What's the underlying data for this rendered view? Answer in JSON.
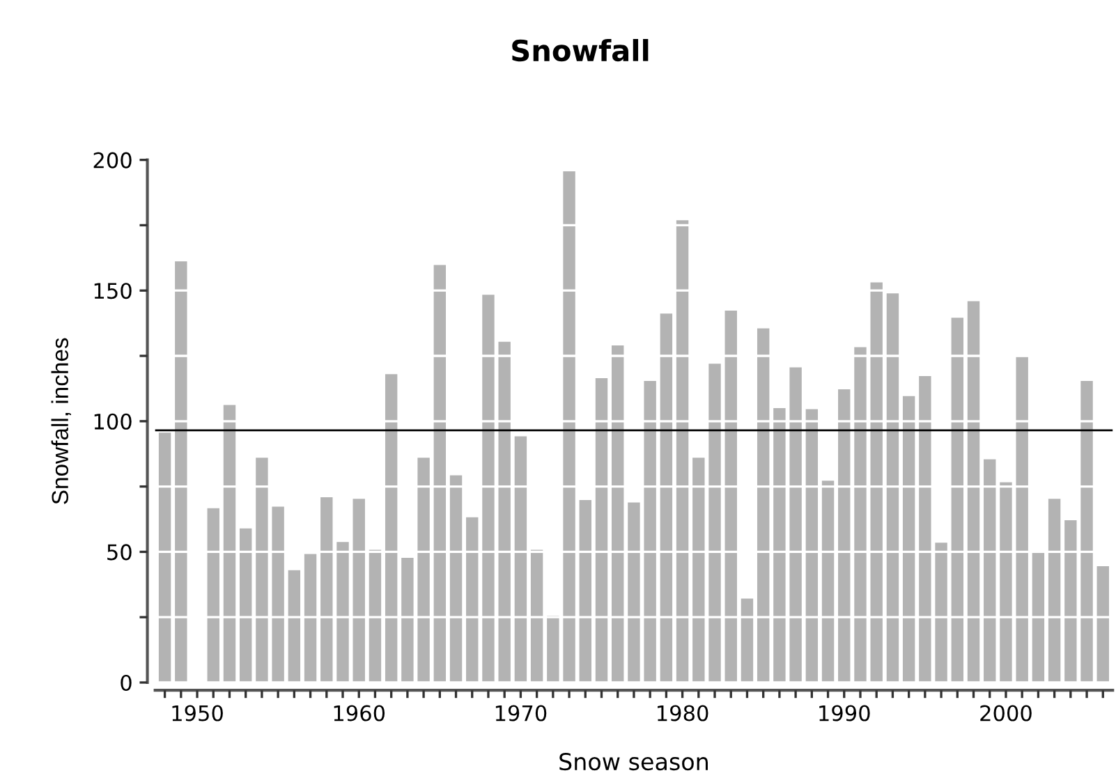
{
  "chart_data": {
    "type": "bar",
    "title": "Snowfall",
    "xlabel": "Snow season",
    "ylabel": "Snowfall, inches",
    "x": [
      1948,
      1949,
      1950,
      1951,
      1952,
      1953,
      1954,
      1955,
      1956,
      1957,
      1958,
      1959,
      1960,
      1961,
      1962,
      1963,
      1964,
      1965,
      1966,
      1967,
      1968,
      1969,
      1970,
      1971,
      1972,
      1973,
      1974,
      1975,
      1976,
      1977,
      1978,
      1979,
      1980,
      1981,
      1982,
      1983,
      1984,
      1985,
      1986,
      1987,
      1988,
      1989,
      1990,
      1991,
      1992,
      1993,
      1994,
      1995,
      1996,
      1997,
      1998,
      1999,
      2000,
      2001,
      2002,
      2003,
      2004,
      2005,
      2006
    ],
    "values": [
      95.6,
      161.2,
      null,
      66.7,
      106.2,
      59,
      86,
      67.3,
      43,
      49.2,
      70.9,
      53.8,
      70.3,
      50.8,
      118,
      47.7,
      86,
      159.8,
      79.3,
      63.2,
      148.4,
      130.4,
      94.2,
      50.8,
      25.5,
      195.6,
      69.8,
      116.5,
      129,
      68.9,
      115.4,
      141.2,
      176.9,
      86,
      122,
      142.3,
      32.1,
      135.5,
      105,
      120.6,
      104.6,
      77.2,
      112.2,
      128.3,
      153.1,
      148.9,
      109.6,
      117.3,
      53.5,
      139.6,
      145.9,
      85.4,
      76.6,
      124.7,
      49.9,
      70.3,
      62.1,
      115.4,
      44.5
    ],
    "color": "#b3b3b3",
    "xlim": [
      1947.4,
      2006.6
    ],
    "xticks": [
      {
        "value": 1948,
        "label": null
      },
      {
        "value": 1949,
        "label": null
      },
      1950,
      {
        "value": 1951,
        "label": null
      },
      {
        "value": 1952,
        "label": null
      },
      {
        "value": 1953,
        "label": null
      },
      {
        "value": 1954,
        "label": null
      },
      {
        "value": 1955,
        "label": null
      },
      {
        "value": 1956,
        "label": null
      },
      {
        "value": 1957,
        "label": null
      },
      {
        "value": 1958,
        "label": null
      },
      {
        "value": 1959,
        "label": null
      },
      1960,
      {
        "value": 1961,
        "label": null
      },
      {
        "value": 1962,
        "label": null
      },
      {
        "value": 1963,
        "label": null
      },
      {
        "value": 1964,
        "label": null
      },
      {
        "value": 1965,
        "label": null
      },
      {
        "value": 1966,
        "label": null
      },
      {
        "value": 1967,
        "label": null
      },
      {
        "value": 1968,
        "label": null
      },
      {
        "value": 1969,
        "label": null
      },
      1970,
      {
        "value": 1971,
        "label": null
      },
      {
        "value": 1972,
        "label": null
      },
      {
        "value": 1973,
        "label": null
      },
      {
        "value": 1974,
        "label": null
      },
      {
        "value": 1975,
        "label": null
      },
      {
        "value": 1976,
        "label": null
      },
      {
        "value": 1977,
        "label": null
      },
      {
        "value": 1978,
        "label": null
      },
      {
        "value": 1979,
        "label": null
      },
      1980,
      {
        "value": 1981,
        "label": null
      },
      {
        "value": 1982,
        "label": null
      },
      {
        "value": 1983,
        "label": null
      },
      {
        "value": 1984,
        "label": null
      },
      {
        "value": 1985,
        "label": null
      },
      {
        "value": 1986,
        "label": null
      },
      {
        "value": 1987,
        "label": null
      },
      {
        "value": 1988,
        "label": null
      },
      {
        "value": 1989,
        "label": null
      },
      1990,
      {
        "value": 1991,
        "label": null
      },
      {
        "value": 1992,
        "label": null
      },
      {
        "value": 1993,
        "label": null
      },
      {
        "value": 1994,
        "label": null
      },
      {
        "value": 1995,
        "label": null
      },
      {
        "value": 1996,
        "label": null
      },
      {
        "value": 1997,
        "label": null
      },
      {
        "value": 1998,
        "label": null
      },
      {
        "value": 1999,
        "label": null
      },
      2000,
      {
        "value": 2001,
        "label": null
      },
      {
        "value": 2002,
        "label": null
      },
      {
        "value": 2003,
        "label": null
      },
      {
        "value": 2004,
        "label": null
      },
      {
        "value": 2005,
        "label": null
      },
      {
        "value": 2006,
        "label": null
      }
    ],
    "ylim": [
      0,
      200
    ],
    "yticks": [
      0,
      {
        "value": 25,
        "label": null
      },
      50,
      {
        "value": 75,
        "label": null
      },
      100,
      {
        "value": 125,
        "label": null
      },
      150,
      {
        "value": 175,
        "label": null
      },
      200
    ],
    "grid": "y",
    "ref_lines": [
      {
        "axis": "y",
        "value": 96.5,
        "color": "#000000"
      }
    ]
  }
}
